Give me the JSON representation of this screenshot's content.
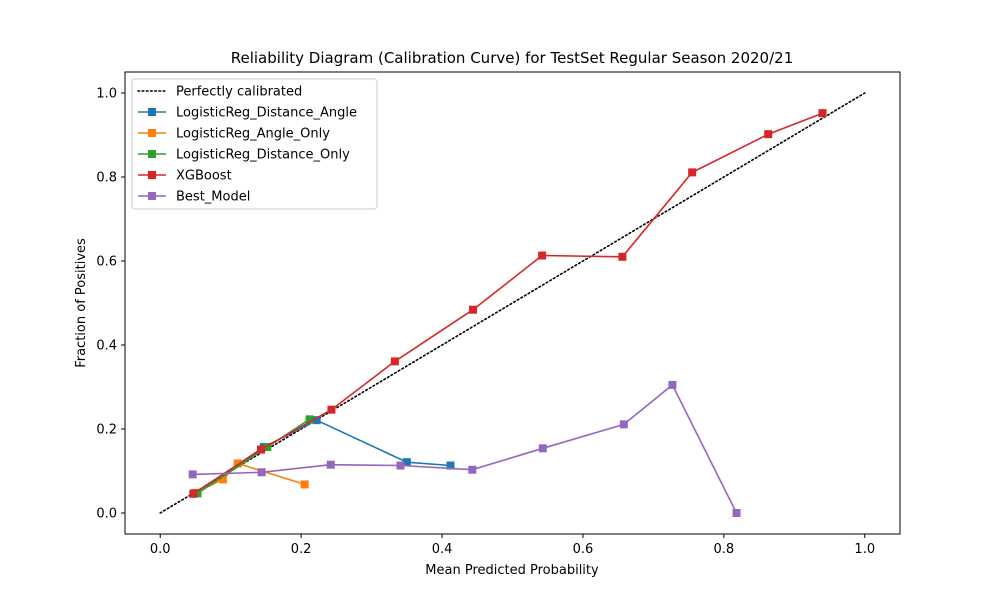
{
  "chart_data": {
    "type": "line",
    "title": "Reliability Diagram (Calibration Curve) for TestSet Regular Season 2020/21",
    "xlabel": "Mean Predicted Probability",
    "ylabel": "Fraction of Positives",
    "xlim": [
      -0.05,
      1.05
    ],
    "ylim": [
      -0.05,
      1.05
    ],
    "xticks": [
      "0.0",
      "0.2",
      "0.4",
      "0.6",
      "0.8",
      "1.0"
    ],
    "yticks": [
      "0.0",
      "0.2",
      "0.4",
      "0.6",
      "0.8",
      "1.0"
    ],
    "grid": false,
    "legend_position": "upper-left",
    "reference_line": {
      "name": "Perfectly calibrated",
      "style": "dotted",
      "color": "#000000",
      "points": [
        [
          0,
          0
        ],
        [
          1,
          1
        ]
      ]
    },
    "series": [
      {
        "name": "LogisticReg_Distance_Angle",
        "color": "#1f77b4",
        "marker": "square",
        "points": [
          [
            0.048,
            0.046
          ],
          [
            0.147,
            0.157
          ],
          [
            0.222,
            0.221
          ],
          [
            0.35,
            0.121
          ],
          [
            0.412,
            0.113
          ]
        ]
      },
      {
        "name": "LogisticReg_Angle_Only",
        "color": "#ff7f0e",
        "marker": "square",
        "points": [
          [
            0.05,
            0.048
          ],
          [
            0.089,
            0.08
          ],
          [
            0.11,
            0.118
          ],
          [
            0.205,
            0.068
          ]
        ]
      },
      {
        "name": "LogisticReg_Distance_Only",
        "color": "#2ca02c",
        "marker": "square",
        "points": [
          [
            0.053,
            0.047
          ],
          [
            0.152,
            0.157
          ],
          [
            0.212,
            0.223
          ]
        ]
      },
      {
        "name": "XGBoost",
        "color": "#d62728",
        "marker": "square",
        "points": [
          [
            0.047,
            0.046
          ],
          [
            0.143,
            0.151
          ],
          [
            0.243,
            0.246
          ],
          [
            0.333,
            0.361
          ],
          [
            0.444,
            0.484
          ],
          [
            0.542,
            0.613
          ],
          [
            0.656,
            0.61
          ],
          [
            0.755,
            0.811
          ],
          [
            0.863,
            0.902
          ],
          [
            0.94,
            0.952
          ]
        ]
      },
      {
        "name": "Best_Model",
        "color": "#9467bd",
        "marker": "square",
        "points": [
          [
            0.046,
            0.092
          ],
          [
            0.144,
            0.097
          ],
          [
            0.242,
            0.115
          ],
          [
            0.341,
            0.113
          ],
          [
            0.443,
            0.103
          ],
          [
            0.543,
            0.154
          ],
          [
            0.658,
            0.211
          ],
          [
            0.727,
            0.305
          ],
          [
            0.818,
            0.0
          ]
        ]
      }
    ]
  }
}
